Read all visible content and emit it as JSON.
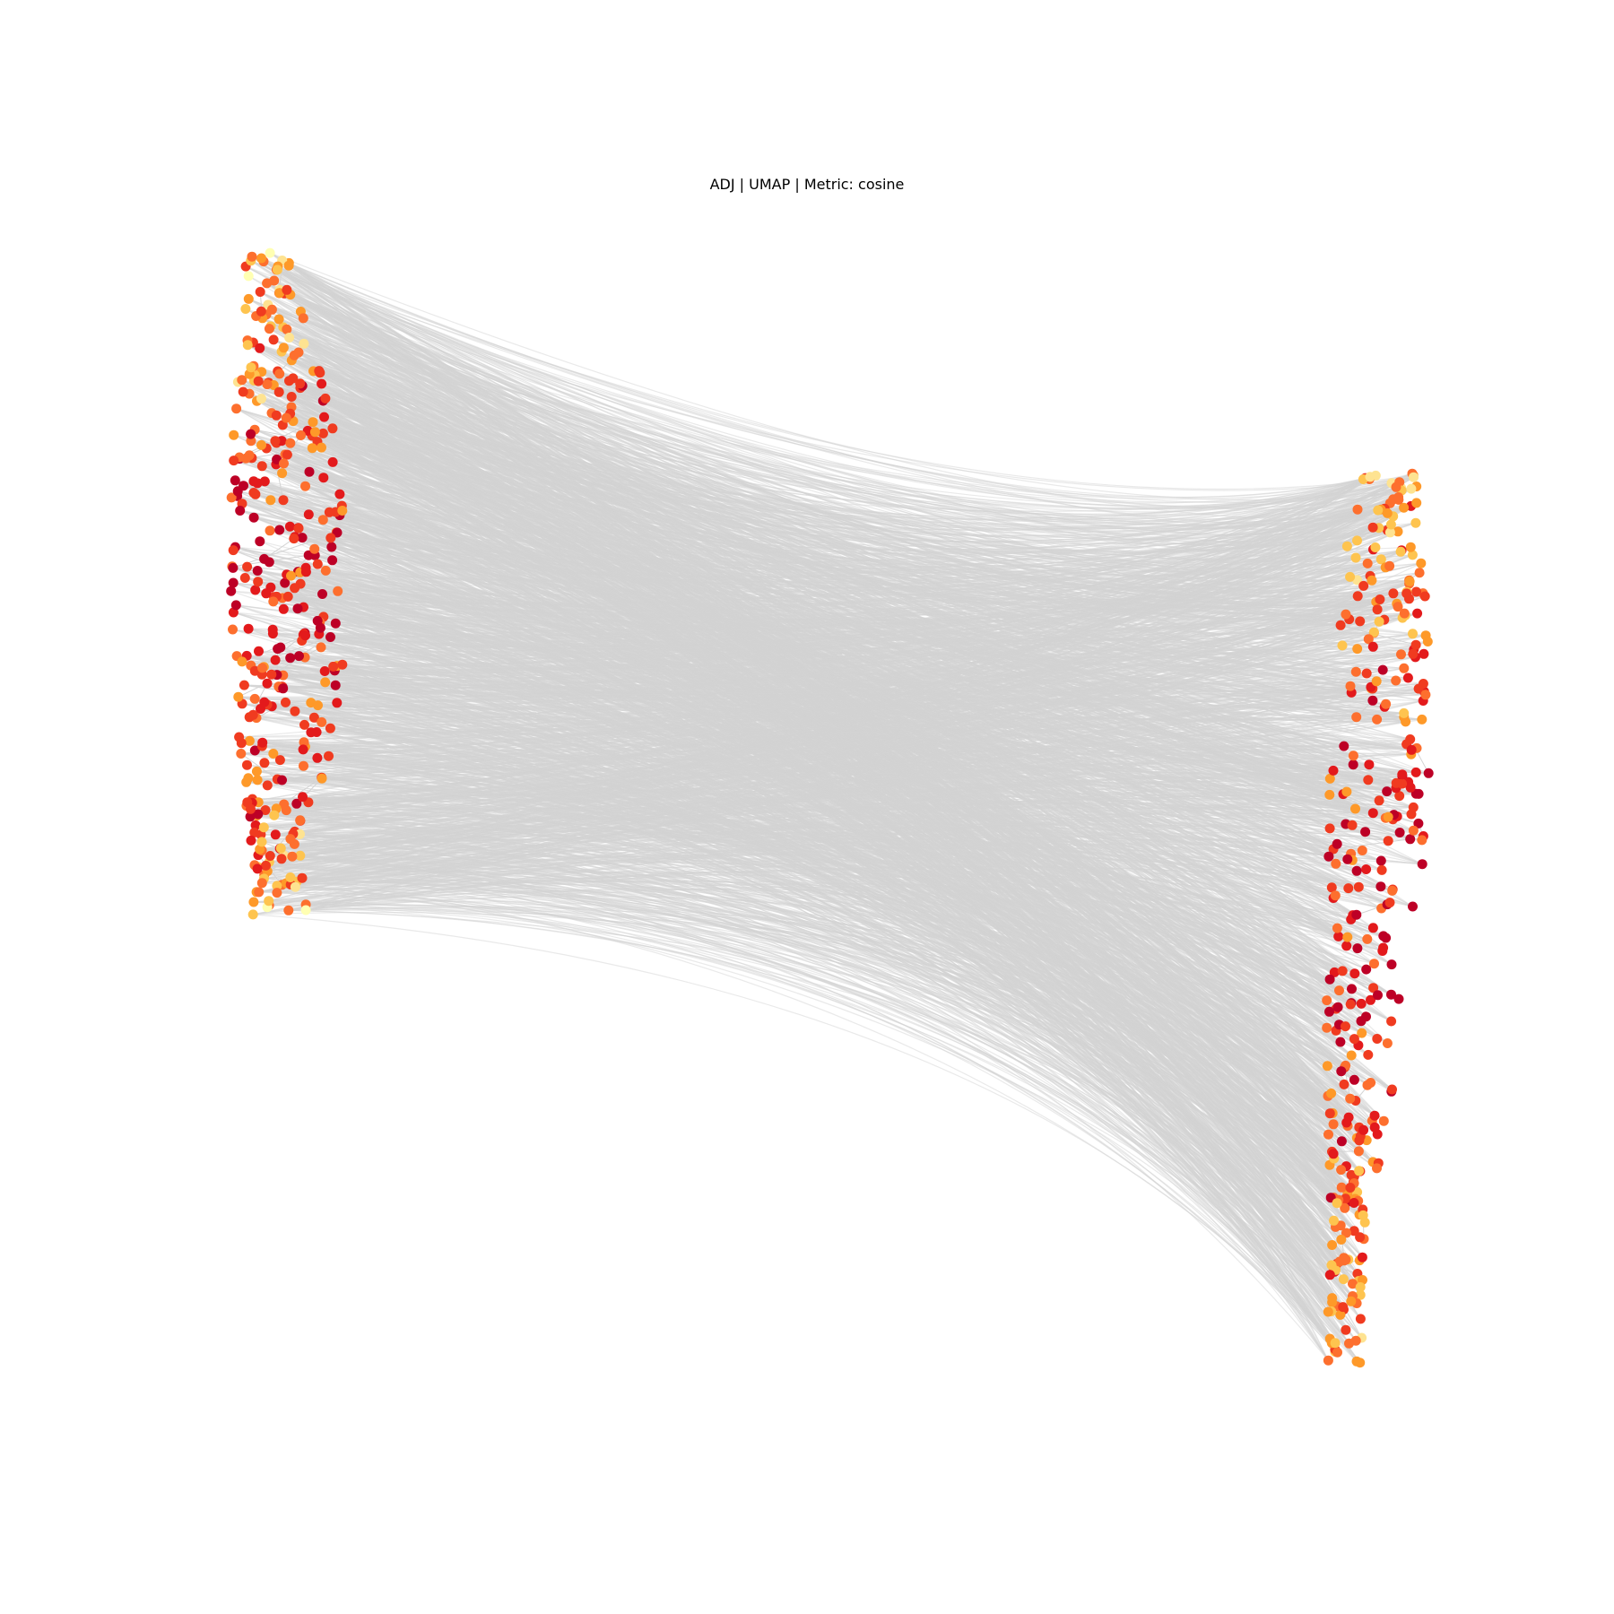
{
  "figure": {
    "title": "ADJ | UMAP | Metric: cosine"
  },
  "graph": {
    "type": "bipartite-node-link-embedding",
    "edge_color": "#d3d3d3",
    "node_colormap": [
      "#ffffb2",
      "#fee391",
      "#fec44f",
      "#fe9929",
      "#fd6f2e",
      "#f03b20",
      "#e31a1c",
      "#bd0026"
    ],
    "clusters": [
      {
        "name": "left",
        "node_count": 370
      },
      {
        "name": "right",
        "node_count": 370
      }
    ]
  }
}
